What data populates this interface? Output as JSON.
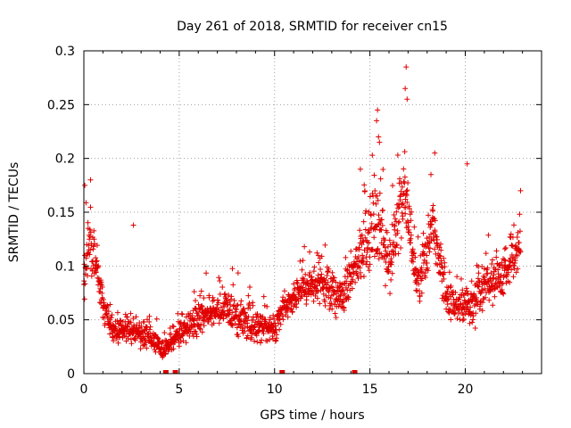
{
  "chart_data": {
    "type": "scatter",
    "title": "Day 261 of 2018, SRMTID for receiver cn15",
    "xlabel": "GPS time / hours",
    "ylabel": "SRMTID / TECUs",
    "xlim": [
      0,
      24
    ],
    "ylim": [
      0,
      0.3
    ],
    "xticks": [
      0,
      5,
      10,
      15,
      20
    ],
    "yticks": [
      0,
      0.05,
      0.1,
      0.15,
      0.2,
      0.25,
      0.3
    ],
    "grid": true,
    "marker": "+",
    "series": [
      {
        "name": "SRMTID",
        "color": "#e00000",
        "envelope": [
          {
            "x": 0.0,
            "y": 0.09,
            "spread": 0.04
          },
          {
            "x": 0.3,
            "y": 0.13,
            "spread": 0.05
          },
          {
            "x": 0.7,
            "y": 0.1,
            "spread": 0.03
          },
          {
            "x": 1.0,
            "y": 0.06,
            "spread": 0.03
          },
          {
            "x": 1.5,
            "y": 0.04,
            "spread": 0.02
          },
          {
            "x": 2.5,
            "y": 0.04,
            "spread": 0.02
          },
          {
            "x": 3.5,
            "y": 0.035,
            "spread": 0.02
          },
          {
            "x": 4.2,
            "y": 0.02,
            "spread": 0.015
          },
          {
            "x": 5.0,
            "y": 0.04,
            "spread": 0.02
          },
          {
            "x": 6.0,
            "y": 0.05,
            "spread": 0.025
          },
          {
            "x": 7.0,
            "y": 0.06,
            "spread": 0.03
          },
          {
            "x": 8.0,
            "y": 0.055,
            "spread": 0.03
          },
          {
            "x": 9.0,
            "y": 0.045,
            "spread": 0.025
          },
          {
            "x": 10.0,
            "y": 0.04,
            "spread": 0.02
          },
          {
            "x": 10.5,
            "y": 0.06,
            "spread": 0.02
          },
          {
            "x": 11.5,
            "y": 0.08,
            "spread": 0.025
          },
          {
            "x": 12.5,
            "y": 0.085,
            "spread": 0.03
          },
          {
            "x": 13.5,
            "y": 0.07,
            "spread": 0.03
          },
          {
            "x": 14.5,
            "y": 0.11,
            "spread": 0.04
          },
          {
            "x": 15.3,
            "y": 0.14,
            "spread": 0.07
          },
          {
            "x": 16.0,
            "y": 0.1,
            "spread": 0.04
          },
          {
            "x": 16.8,
            "y": 0.17,
            "spread": 0.07
          },
          {
            "x": 17.5,
            "y": 0.08,
            "spread": 0.035
          },
          {
            "x": 18.3,
            "y": 0.14,
            "spread": 0.05
          },
          {
            "x": 19.0,
            "y": 0.07,
            "spread": 0.03
          },
          {
            "x": 20.0,
            "y": 0.06,
            "spread": 0.035
          },
          {
            "x": 21.0,
            "y": 0.08,
            "spread": 0.035
          },
          {
            "x": 22.0,
            "y": 0.09,
            "spread": 0.035
          },
          {
            "x": 22.9,
            "y": 0.12,
            "spread": 0.04
          }
        ],
        "peaks": [
          {
            "x": 16.9,
            "y": 0.285
          },
          {
            "x": 16.85,
            "y": 0.265
          },
          {
            "x": 16.95,
            "y": 0.255
          },
          {
            "x": 15.4,
            "y": 0.245
          },
          {
            "x": 15.35,
            "y": 0.235
          },
          {
            "x": 15.45,
            "y": 0.22
          },
          {
            "x": 15.5,
            "y": 0.215
          },
          {
            "x": 14.5,
            "y": 0.19
          },
          {
            "x": 18.4,
            "y": 0.205
          },
          {
            "x": 18.2,
            "y": 0.185
          },
          {
            "x": 20.1,
            "y": 0.195
          },
          {
            "x": 0.05,
            "y": 0.175
          },
          {
            "x": 0.35,
            "y": 0.18
          },
          {
            "x": 2.6,
            "y": 0.138
          },
          {
            "x": 22.9,
            "y": 0.17
          }
        ],
        "baseline_points": [
          4.3,
          4.8,
          10.4,
          14.2
        ]
      }
    ]
  }
}
